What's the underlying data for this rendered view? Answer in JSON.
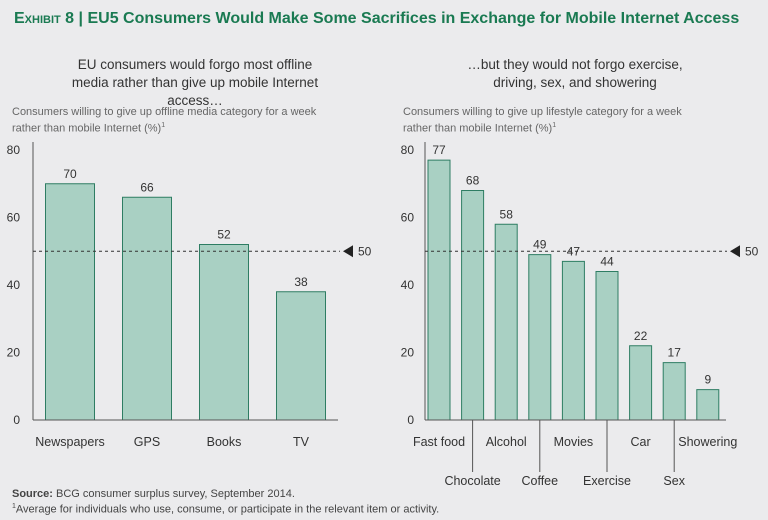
{
  "header": {
    "exhibit": "Exhibit 8",
    "separator": "|",
    "title": "EU5 Consumers Would Make Some Sacrifices in Exchange for Mobile Internet Access"
  },
  "colors": {
    "bar_fill": "#a9d0c3",
    "bar_stroke": "#2e7d63",
    "title": "#1a7a52"
  },
  "chart_data": [
    {
      "type": "bar",
      "title": "EU consumers would forgo most offline media rather than give up mobile Internet access…",
      "ylabel": "Consumers willing to give up offline media category for a week rather than mobile Internet (%)",
      "ylabel_sup": "1",
      "categories": [
        "Newspapers",
        "GPS",
        "Books",
        "TV"
      ],
      "values": [
        70,
        66,
        52,
        38
      ],
      "ylim": [
        0,
        80
      ],
      "yticks": [
        0,
        20,
        40,
        60,
        80
      ],
      "reference_line": {
        "value": 50,
        "label": "50"
      }
    },
    {
      "type": "bar",
      "title": "…but they would not forgo exercise, driving, sex, and showering",
      "ylabel": "Consumers willing to give up lifestyle category for a week rather than mobile Internet (%)",
      "ylabel_sup": "1",
      "categories": [
        "Fast food",
        "Chocolate",
        "Alcohol",
        "Coffee",
        "Movies",
        "Exercise",
        "Car",
        "Sex",
        "Showering"
      ],
      "values": [
        77,
        68,
        58,
        49,
        47,
        44,
        22,
        17,
        9
      ],
      "ylim": [
        0,
        80
      ],
      "yticks": [
        0,
        20,
        40,
        60,
        80
      ],
      "reference_line": {
        "value": 50,
        "label": "50"
      }
    }
  ],
  "footer": {
    "source_label": "Source:",
    "source_text": "BCG consumer surplus survey, September 2014.",
    "note_sup": "1",
    "note": "Average for individuals who use, consume, or participate in the relevant item or activity."
  }
}
